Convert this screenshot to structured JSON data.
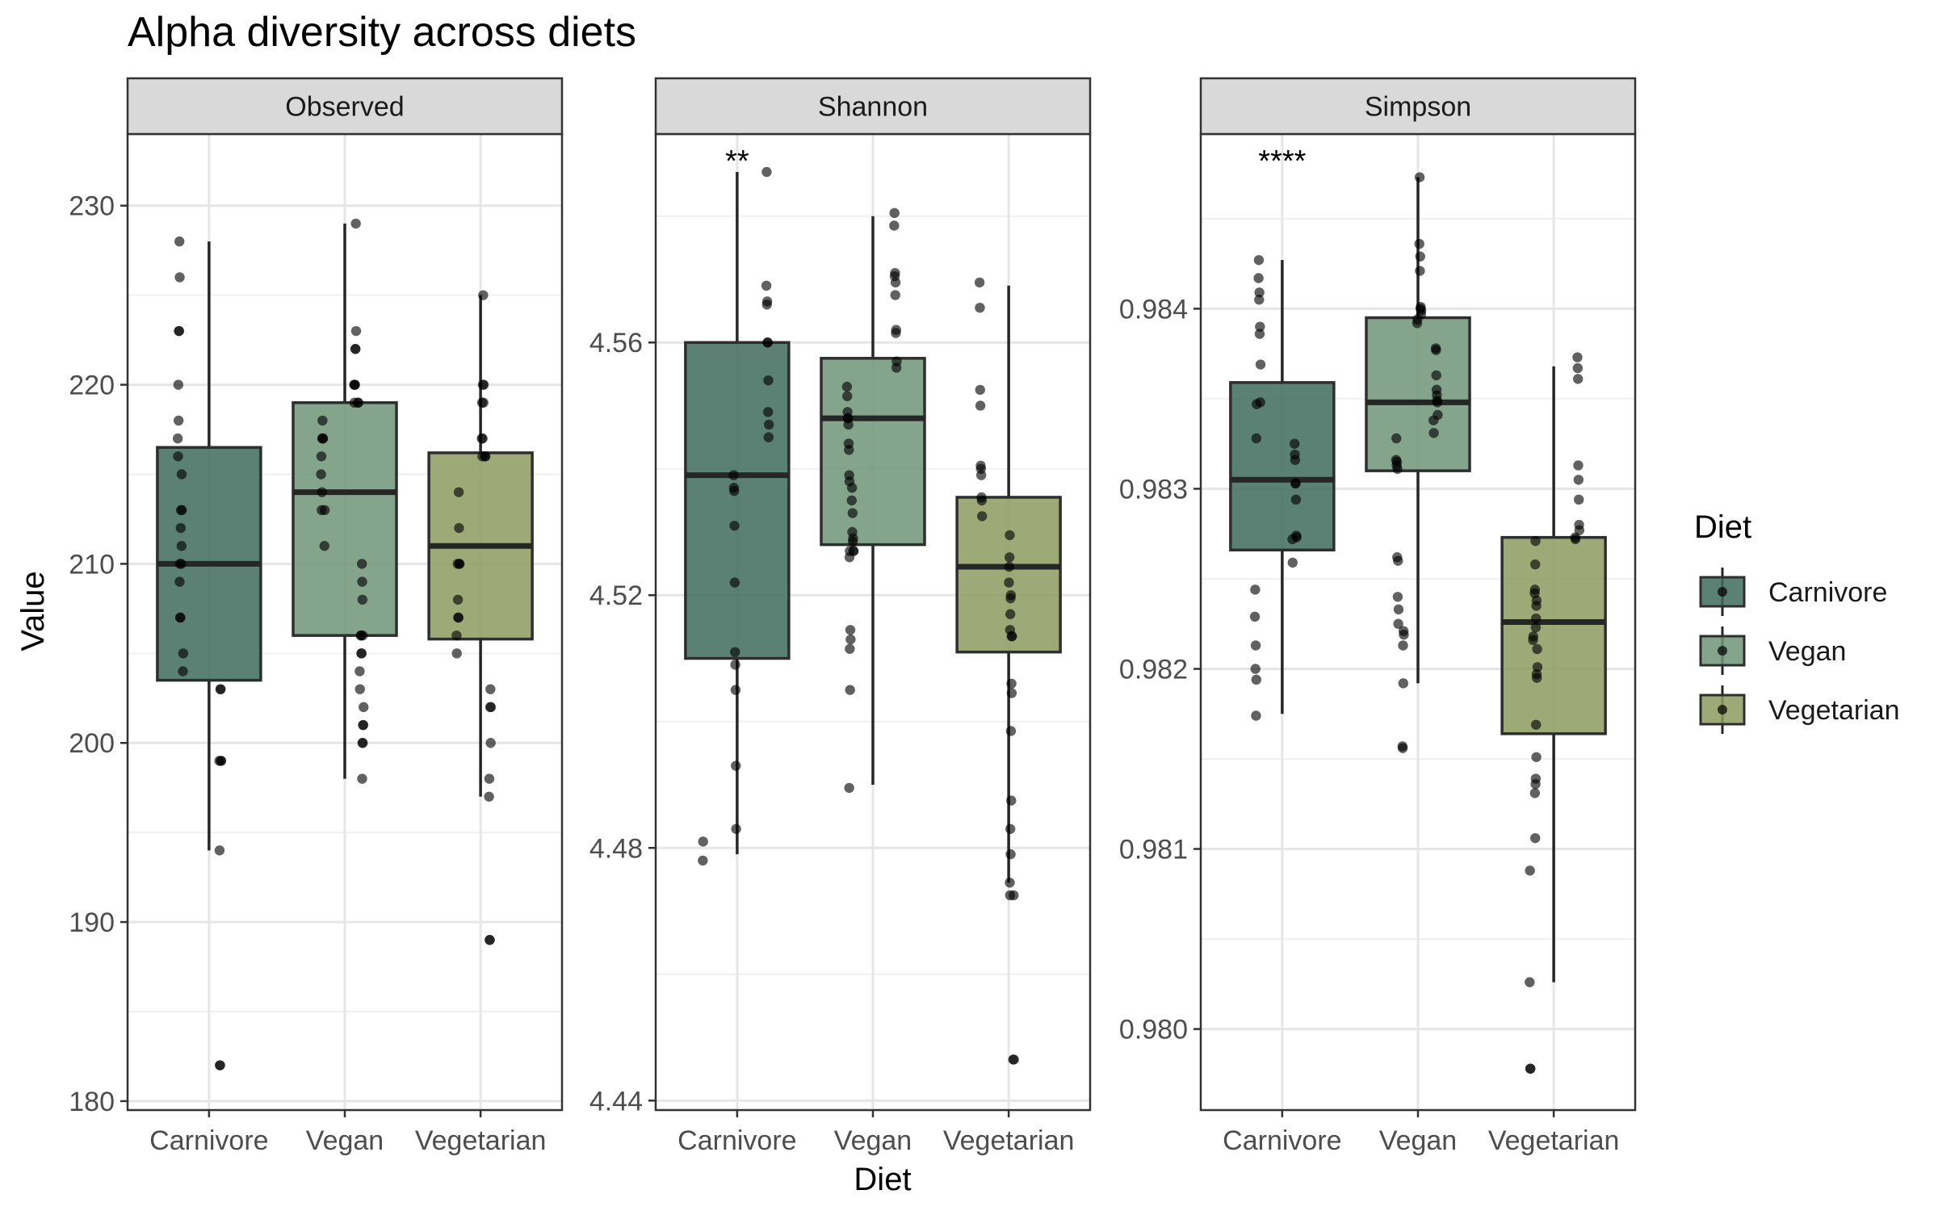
{
  "chart_data": {
    "type": "box",
    "title": "Alpha diversity across diets",
    "xlabel": "Diet",
    "ylabel": "Value",
    "categories": [
      "Carnivore",
      "Vegan",
      "Vegetarian"
    ],
    "legend": {
      "title": "Diet",
      "position": "right",
      "entries": [
        {
          "name": "Carnivore",
          "color": "#3d6b5c"
        },
        {
          "name": "Vegan",
          "color": "#6e9477"
        },
        {
          "name": "Vegetarian",
          "color": "#8c9a5e"
        }
      ]
    },
    "panels": [
      {
        "name": "Observed",
        "ylim": [
          179.5,
          234
        ],
        "yticks": [
          180,
          190,
          200,
          210,
          220,
          230
        ],
        "ytick_labels": [
          "180",
          "190",
          "200",
          "210",
          "220",
          "230"
        ],
        "annotation": "",
        "boxes": [
          {
            "category": "Carnivore",
            "whisker_low": 194,
            "q1": 203.5,
            "median": 210,
            "q3": 216.5,
            "whisker_high": 228,
            "points": [
              228,
              226,
              223,
              223,
              220,
              218,
              217,
              216,
              215,
              213,
              213,
              212,
              211,
              210,
              210,
              209,
              207,
              207,
              205,
              204,
              203,
              203,
              199,
              199,
              199,
              194,
              182,
              182
            ]
          },
          {
            "category": "Vegan",
            "whisker_low": 198,
            "q1": 206,
            "median": 214,
            "q3": 219,
            "whisker_high": 229,
            "points": [
              229,
              223,
              222,
              222,
              220,
              220,
              220,
              219,
              219,
              219,
              218,
              217,
              217,
              217,
              216,
              215,
              214,
              213,
              213,
              211,
              210,
              209,
              208,
              206,
              206,
              206,
              205,
              205,
              204,
              203,
              202,
              201,
              201,
              200,
              200,
              198
            ]
          },
          {
            "category": "Vegetarian",
            "whisker_low": 197,
            "q1": 205.8,
            "median": 211,
            "q3": 216.2,
            "whisker_high": 225,
            "points": [
              225,
              220,
              220,
              219,
              219,
              217,
              217,
              216,
              216,
              216,
              214,
              212,
              210,
              210,
              210,
              208,
              207,
              207,
              206,
              205,
              203,
              202,
              202,
              200,
              198,
              197,
              189,
              189
            ]
          }
        ]
      },
      {
        "name": "Shannon",
        "ylim": [
          4.4385,
          4.593
        ],
        "yticks": [
          4.44,
          4.48,
          4.52,
          4.56
        ],
        "ytick_labels": [
          "4.44",
          "4.48",
          "4.52",
          "4.56"
        ],
        "annotation": "**",
        "boxes": [
          {
            "category": "Carnivore",
            "whisker_low": 4.479,
            "q1": 4.51,
            "median": 4.539,
            "q3": 4.56,
            "whisker_high": 4.587,
            "points": [
              4.587,
              4.569,
              4.5665,
              4.566,
              4.56,
              4.56,
              4.554,
              4.549,
              4.547,
              4.545,
              4.539,
              4.537,
              4.5365,
              4.531,
              4.522,
              4.511,
              4.509,
              4.505,
              4.493,
              4.483,
              4.481,
              4.478
            ]
          },
          {
            "category": "Vegan",
            "whisker_low": 4.49,
            "q1": 4.528,
            "median": 4.548,
            "q3": 4.5575,
            "whisker_high": 4.58,
            "points": [
              4.5805,
              4.5785,
              4.571,
              4.5705,
              4.5695,
              4.5675,
              4.562,
              4.5615,
              4.557,
              4.556,
              4.553,
              4.5515,
              4.549,
              4.548,
              4.548,
              4.547,
              4.544,
              4.543,
              4.539,
              4.538,
              4.537,
              4.535,
              4.533,
              4.53,
              4.529,
              4.5285,
              4.527,
              4.527,
              4.527,
              4.526,
              4.5145,
              4.513,
              4.5115,
              4.505,
              4.4895
            ]
          },
          {
            "category": "Vegetarian",
            "whisker_low": 4.4745,
            "q1": 4.511,
            "median": 4.5245,
            "q3": 4.5355,
            "whisker_high": 4.569,
            "points": [
              4.5695,
              4.5655,
              4.5525,
              4.55,
              4.5405,
              4.54,
              4.539,
              4.5355,
              4.535,
              4.5325,
              4.5295,
              4.526,
              4.5245,
              4.522,
              4.52,
              4.5195,
              4.517,
              4.5145,
              4.5135,
              4.5135,
              4.506,
              4.5045,
              4.4985,
              4.4875,
              4.483,
              4.479,
              4.4745,
              4.4725,
              4.4725,
              4.4465,
              4.4465
            ]
          }
        ]
      },
      {
        "name": "Simpson",
        "ylim": [
          0.97955,
          0.98497
        ],
        "yticks": [
          0.98,
          0.981,
          0.982,
          0.983,
          0.984
        ],
        "ytick_labels": [
          "0.980",
          "0.981",
          "0.982",
          "0.983",
          "0.984"
        ],
        "annotation": "****",
        "boxes": [
          {
            "category": "Carnivore",
            "whisker_low": 0.98175,
            "q1": 0.98266,
            "median": 0.98305,
            "q3": 0.98359,
            "whisker_high": 0.98427,
            "points": [
              0.98427,
              0.98417,
              0.98409,
              0.98405,
              0.9839,
              0.98386,
              0.98369,
              0.98348,
              0.98347,
              0.98328,
              0.98325,
              0.98319,
              0.98316,
              0.98303,
              0.98303,
              0.98294,
              0.98274,
              0.98273,
              0.98272,
              0.98259,
              0.98244,
              0.98229,
              0.98213,
              0.982,
              0.98194,
              0.98174
            ]
          },
          {
            "category": "Vegan",
            "whisker_low": 0.98192,
            "q1": 0.9831,
            "median": 0.98348,
            "q3": 0.98395,
            "whisker_high": 0.98473,
            "points": [
              0.98473,
              0.98436,
              0.98429,
              0.98421,
              0.98401,
              0.984,
              0.98399,
              0.98397,
              0.98394,
              0.98392,
              0.98378,
              0.98377,
              0.98363,
              0.98355,
              0.98352,
              0.98349,
              0.98348,
              0.98341,
              0.98338,
              0.98331,
              0.98328,
              0.98316,
              0.98315,
              0.98313,
              0.98311,
              0.98262,
              0.9826,
              0.9824,
              0.98233,
              0.98225,
              0.98221,
              0.98219,
              0.98213,
              0.98192,
              0.98157,
              0.98156
            ]
          },
          {
            "category": "Vegetarian",
            "whisker_low": 0.98026,
            "q1": 0.98164,
            "median": 0.98226,
            "q3": 0.98273,
            "whisker_high": 0.98368,
            "points": [
              0.98373,
              0.98367,
              0.98361,
              0.98313,
              0.98305,
              0.98294,
              0.9828,
              0.98277,
              0.98273,
              0.98272,
              0.98271,
              0.98258,
              0.98244,
              0.98242,
              0.98238,
              0.98235,
              0.98228,
              0.98223,
              0.98218,
              0.98216,
              0.98211,
              0.98201,
              0.98197,
              0.98195,
              0.98169,
              0.98151,
              0.98136,
              0.98139,
              0.98131,
              0.98106,
              0.98088,
              0.98026,
              0.97978,
              0.97978
            ]
          }
        ]
      }
    ]
  }
}
